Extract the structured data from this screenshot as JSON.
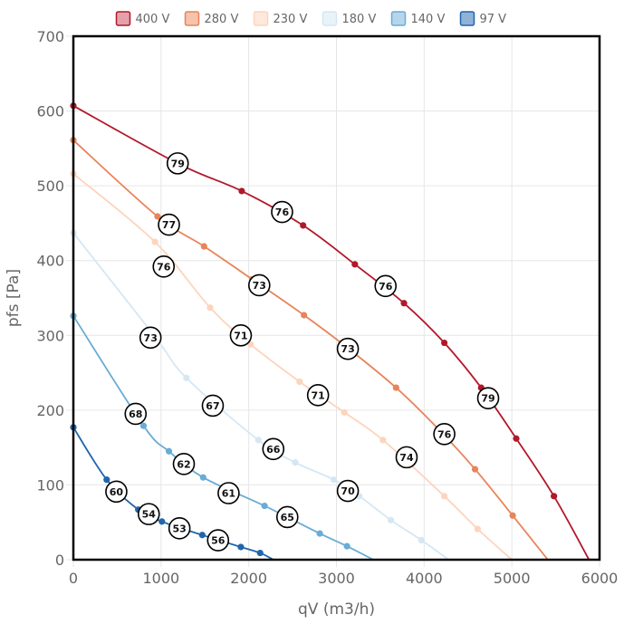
{
  "chart_data": {
    "type": "line",
    "xlabel": "qV (m3/h)",
    "ylabel": "pfs [Pa]",
    "xlim": [
      0,
      6000
    ],
    "ylim": [
      0,
      700
    ],
    "xticks": [
      0,
      1000,
      2000,
      3000,
      4000,
      5000,
      6000
    ],
    "yticks": [
      0,
      100,
      200,
      300,
      400,
      500,
      600,
      700
    ],
    "grid": true,
    "legend": "top",
    "series": [
      {
        "name": "400 V",
        "color": "#b2182b",
        "fill": "#e3a2aa",
        "points": [
          [
            0,
            607
          ],
          [
            1190,
            530
          ],
          [
            1920,
            493
          ],
          [
            2620,
            447
          ],
          [
            3210,
            395
          ],
          [
            3770,
            343
          ],
          [
            4230,
            290
          ],
          [
            4650,
            230
          ],
          [
            5050,
            162
          ],
          [
            5480,
            85
          ],
          [
            5880,
            0
          ]
        ]
      },
      {
        "name": "280 V",
        "color": "#e8845a",
        "fill": "#f6c3ad",
        "points": [
          [
            0,
            561
          ],
          [
            960,
            459
          ],
          [
            1490,
            419
          ],
          [
            2040,
            375
          ],
          [
            2630,
            327
          ],
          [
            3130,
            283
          ],
          [
            3680,
            230
          ],
          [
            4160,
            175
          ],
          [
            4580,
            121
          ],
          [
            5010,
            59
          ],
          [
            5410,
            0
          ]
        ]
      },
      {
        "name": "230 V",
        "color": "#fdd4bd",
        "fill": "#fde8dc",
        "points": [
          [
            0,
            516
          ],
          [
            930,
            425
          ],
          [
            1560,
            337
          ],
          [
            2020,
            288
          ],
          [
            2580,
            238
          ],
          [
            3090,
            197
          ],
          [
            3530,
            160
          ],
          [
            4230,
            85
          ],
          [
            4610,
            41
          ],
          [
            5000,
            0
          ]
        ]
      },
      {
        "name": "180 V",
        "color": "#d5e7f3",
        "fill": "#e8f2f9",
        "points": [
          [
            0,
            437
          ],
          [
            920,
            300
          ],
          [
            1290,
            243
          ],
          [
            2110,
            160
          ],
          [
            2530,
            130
          ],
          [
            2970,
            107
          ],
          [
            3260,
            85
          ],
          [
            3620,
            53
          ],
          [
            3970,
            26
          ],
          [
            4280,
            0
          ]
        ]
      },
      {
        "name": "140 V",
        "color": "#6aacd4",
        "fill": "#b5d6ea",
        "points": [
          [
            0,
            326
          ],
          [
            800,
            179
          ],
          [
            1090,
            145
          ],
          [
            1480,
            110
          ],
          [
            2180,
            72
          ],
          [
            2810,
            35
          ],
          [
            3120,
            18
          ],
          [
            3420,
            0
          ]
        ]
      },
      {
        "name": "97 V",
        "color": "#2166ac",
        "fill": "#8fb2d6",
        "points": [
          [
            0,
            177
          ],
          [
            380,
            107
          ],
          [
            740,
            67
          ],
          [
            1010,
            51
          ],
          [
            1470,
            33
          ],
          [
            1910,
            17
          ],
          [
            2130,
            9
          ],
          [
            2280,
            0
          ]
        ]
      }
    ],
    "annotations": [
      {
        "x": 1190,
        "y": 530,
        "label": "79"
      },
      {
        "x": 2380,
        "y": 465,
        "label": "76"
      },
      {
        "x": 3560,
        "y": 366,
        "label": "76"
      },
      {
        "x": 4730,
        "y": 216,
        "label": "79"
      },
      {
        "x": 1090,
        "y": 448,
        "label": "77"
      },
      {
        "x": 2120,
        "y": 367,
        "label": "73"
      },
      {
        "x": 3130,
        "y": 282,
        "label": "73"
      },
      {
        "x": 4230,
        "y": 168,
        "label": "76"
      },
      {
        "x": 1030,
        "y": 392,
        "label": "76"
      },
      {
        "x": 1910,
        "y": 300,
        "label": "71"
      },
      {
        "x": 2790,
        "y": 220,
        "label": "71"
      },
      {
        "x": 3800,
        "y": 137,
        "label": "74"
      },
      {
        "x": 880,
        "y": 297,
        "label": "73"
      },
      {
        "x": 1590,
        "y": 206,
        "label": "67"
      },
      {
        "x": 2280,
        "y": 148,
        "label": "66"
      },
      {
        "x": 3130,
        "y": 92,
        "label": "70"
      },
      {
        "x": 710,
        "y": 195,
        "label": "68"
      },
      {
        "x": 1260,
        "y": 128,
        "label": "62"
      },
      {
        "x": 1770,
        "y": 89,
        "label": "61"
      },
      {
        "x": 2440,
        "y": 57,
        "label": "65"
      },
      {
        "x": 490,
        "y": 91,
        "label": "60"
      },
      {
        "x": 860,
        "y": 61,
        "label": "54"
      },
      {
        "x": 1210,
        "y": 42,
        "label": "53"
      },
      {
        "x": 1650,
        "y": 26,
        "label": "56"
      }
    ]
  }
}
